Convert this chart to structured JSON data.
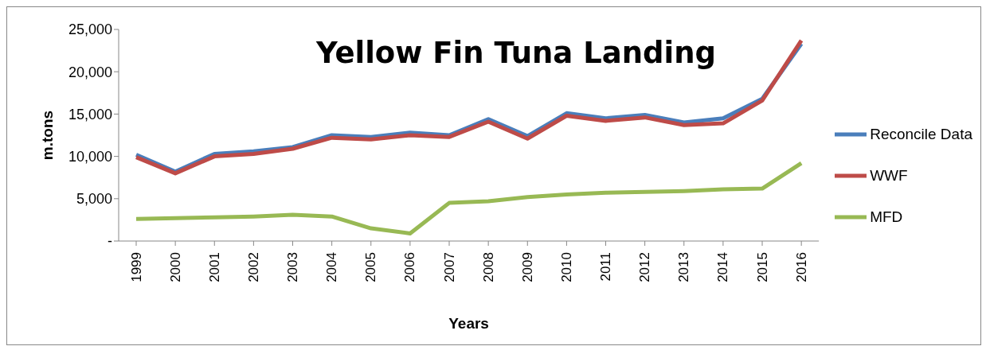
{
  "chart_data": {
    "type": "line",
    "title": "Yellow Fin Tuna Landing",
    "xlabel": "Years",
    "ylabel": "m.tons",
    "categories": [
      "1999",
      "2000",
      "2001",
      "2002",
      "2003",
      "2004",
      "2005",
      "2006",
      "2007",
      "2008",
      "2009",
      "2010",
      "2011",
      "2012",
      "2013",
      "2014",
      "2015",
      "2016"
    ],
    "series": [
      {
        "name": "Reconcile Data",
        "color": "#4a7ebb",
        "values": [
          10200,
          8200,
          10300,
          10600,
          11100,
          12500,
          12300,
          12800,
          12500,
          14400,
          12400,
          15100,
          14500,
          14900,
          14000,
          14500,
          16800,
          23300
        ]
      },
      {
        "name": "WWF",
        "color": "#be4b48",
        "values": [
          9900,
          8000,
          10000,
          10300,
          10900,
          12200,
          12000,
          12500,
          12300,
          14100,
          12100,
          14800,
          14200,
          14600,
          13700,
          13900,
          16600,
          23700
        ]
      },
      {
        "name": "MFD",
        "color": "#98b954",
        "values": [
          2600,
          2700,
          2800,
          2900,
          3100,
          2900,
          1500,
          900,
          4500,
          4700,
          5200,
          5500,
          5700,
          5800,
          5900,
          6100,
          6200,
          9200
        ]
      }
    ],
    "ylim": [
      0,
      25000
    ],
    "yticks": [
      {
        "value": 0,
        "label": "-"
      },
      {
        "value": 5000,
        "label": "5,000"
      },
      {
        "value": 10000,
        "label": "10,000"
      },
      {
        "value": 15000,
        "label": "15,000"
      },
      {
        "value": 20000,
        "label": "20,000"
      },
      {
        "value": 25000,
        "label": "25,000"
      }
    ],
    "grid": false,
    "legend": "right",
    "marker": "none",
    "line_style": "solid"
  }
}
